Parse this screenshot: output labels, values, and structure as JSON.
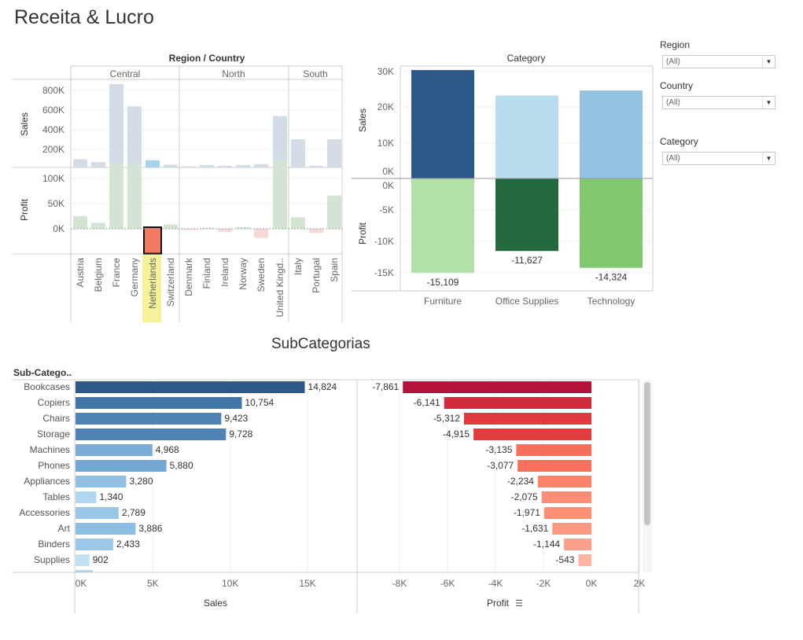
{
  "title": "Receita & Lucro",
  "subtitle": "SubCategorias",
  "filters": [
    {
      "label": "Region",
      "value": "(All)"
    },
    {
      "label": "Country",
      "value": "(All)"
    },
    {
      "label": "Category",
      "value": "(All)"
    }
  ],
  "chart_data": [
    {
      "type": "bar",
      "title": "Region / Country",
      "regions": [
        "Central",
        "North",
        "South"
      ],
      "categories": [
        "Austria",
        "Belgium",
        "France",
        "Germany",
        "Netherlands",
        "Switzerland",
        "Denmark",
        "Finland",
        "Ireland",
        "Norway",
        "Sweden",
        "United Kingd..",
        "Italy",
        "Portugal",
        "Spain"
      ],
      "region_of": [
        "Central",
        "Central",
        "Central",
        "Central",
        "Central",
        "Central",
        "North",
        "North",
        "North",
        "North",
        "North",
        "North",
        "South",
        "South",
        "South"
      ],
      "highlighted": "Netherlands",
      "series": [
        {
          "name": "Sales",
          "values": [
            85000,
            55000,
            860000,
            630000,
            75000,
            28000,
            12000,
            25000,
            18000,
            25000,
            35000,
            530000,
            290000,
            18000,
            290000
          ]
        },
        {
          "name": "Profit",
          "values": [
            21000,
            10000,
            108000,
            107000,
            -41000,
            7000,
            -2000,
            2000,
            -5000,
            3000,
            -15000,
            113000,
            19000,
            -7000,
            55000
          ]
        }
      ],
      "sales_ticks": [
        "800K",
        "600K",
        "400K",
        "200K"
      ],
      "profit_ticks": [
        "100K",
        "50K",
        "0K"
      ],
      "ylabels": [
        "Sales",
        "Profit"
      ]
    },
    {
      "type": "bar",
      "title": "Category",
      "categories": [
        "Furniture",
        "Office Supplies",
        "Technology"
      ],
      "series": [
        {
          "name": "Sales",
          "values": [
            30200,
            23100,
            24500
          ]
        },
        {
          "name": "Profit",
          "values": [
            -15109,
            -11627,
            -14324
          ]
        }
      ],
      "profit_labels": [
        "-15,109",
        "-11,627",
        "-14,324"
      ],
      "colors": {
        "sales": [
          "#2c5987",
          "#b8dcee",
          "#94c2e2"
        ],
        "profit": [
          "#b3e0a6",
          "#24693d",
          "#80c970"
        ]
      },
      "sales_ticks": [
        "30K",
        "20K",
        "10K",
        "0K"
      ],
      "profit_ticks": [
        "0K",
        "-5K",
        "-10K",
        "-15K"
      ],
      "ylabels": [
        "Sales",
        "Profit"
      ]
    },
    {
      "type": "bar",
      "title": "SubCategorias",
      "header": "Sub-Catego..",
      "categories": [
        "Bookcases",
        "Copiers",
        "Chairs",
        "Storage",
        "Machines",
        "Phones",
        "Appliances",
        "Tables",
        "Accessories",
        "Art",
        "Binders",
        "Supplies"
      ],
      "series": [
        {
          "name": "Sales",
          "values": [
            14824,
            10754,
            9423,
            9728,
            4968,
            5880,
            3280,
            1340,
            2789,
            3886,
            2433,
            902
          ]
        },
        {
          "name": "Profit",
          "values": [
            -7861,
            -6141,
            -5312,
            -4915,
            -3135,
            -3077,
            -2234,
            -2075,
            -1971,
            -1631,
            -1144,
            -543
          ]
        }
      ],
      "sales_labels": [
        "14,824",
        "10,754",
        "9,423",
        "9,728",
        "4,968",
        "5,880",
        "3,280",
        "1,340",
        "2,789",
        "3,886",
        "2,433",
        "902"
      ],
      "profit_labels": [
        "-7,861",
        "-6,141",
        "-5,312",
        "-4,915",
        "-3,135",
        "-3,077",
        "-2,234",
        "-2,075",
        "-1,971",
        "-1,631",
        "-1,144",
        "-543"
      ],
      "sales_ticks": [
        "0K",
        "5K",
        "10K",
        "15K"
      ],
      "profit_ticks": [
        "-8K",
        "-6K",
        "-4K",
        "-2K",
        "0K",
        "2K"
      ],
      "xlabels": [
        "Sales",
        "Profit"
      ],
      "xlim_sales": [
        0,
        17000
      ],
      "xlim_profit": [
        -8000,
        2000
      ],
      "colors": {
        "sales": [
          "#2c5987",
          "#4376a8",
          "#4f82b5",
          "#4f82b5",
          "#79acd6",
          "#74a8d4",
          "#90c0e3",
          "#b0d7ee",
          "#98c6e5",
          "#8cbde2",
          "#9ac8e6",
          "#c2e1f2"
        ],
        "profit": [
          "#b5123b",
          "#d12a3e",
          "#e0393e",
          "#e43d3d",
          "#f5705a",
          "#f5715b",
          "#fa8368",
          "#fb8e74",
          "#fb9075",
          "#fb9a80",
          "#fba08a",
          "#fcb4a0"
        ]
      }
    }
  ]
}
